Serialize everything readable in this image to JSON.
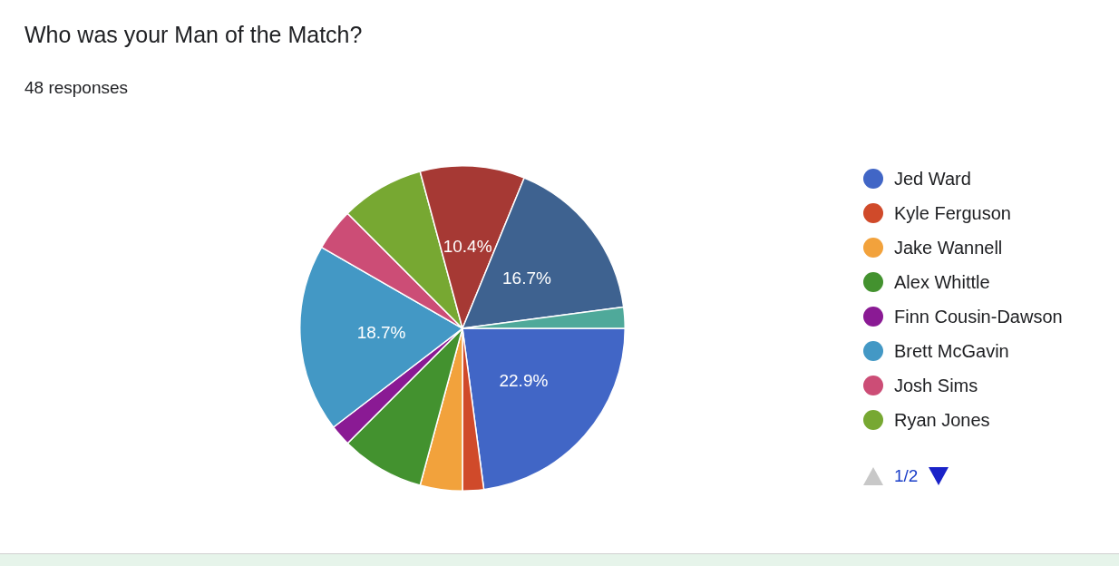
{
  "chart_data": {
    "type": "pie",
    "title": "Who was your Man of the Match?",
    "subtitle": "48 responses",
    "categories": [
      "Jed Ward",
      "Kyle Ferguson",
      "Jake Wannell",
      "Alex Whittle",
      "Finn Cousin-Dawson",
      "Brett McGavin",
      "Josh Sims",
      "Ryan Jones",
      null,
      null,
      null
    ],
    "values": [
      22.9,
      2.1,
      4.2,
      8.3,
      2.1,
      18.7,
      4.2,
      8.3,
      10.4,
      16.7,
      2.1
    ],
    "colors": [
      "#4166c6",
      "#d04a2a",
      "#f2a23c",
      "#43922f",
      "#8a1a94",
      "#4398c5",
      "#cc4d76",
      "#77a832",
      "#a63934",
      "#3e6290",
      "#4fa99a"
    ],
    "value_labels": [
      "22.9%",
      null,
      null,
      null,
      null,
      "18.7%",
      null,
      null,
      "10.4%",
      "16.7%",
      null
    ],
    "legend": "right",
    "annotations": [
      "1/2"
    ]
  }
}
